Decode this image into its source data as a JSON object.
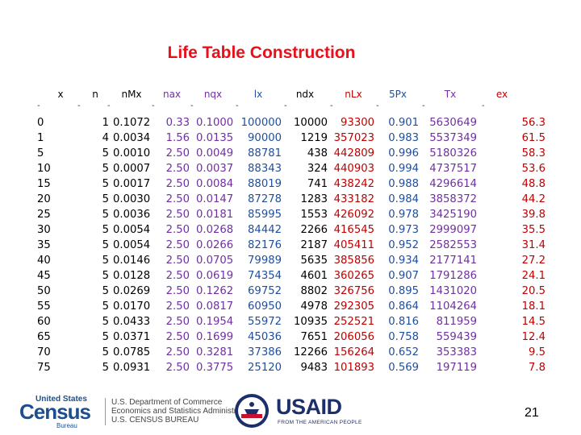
{
  "title": "Life Table Construction",
  "columns": [
    {
      "key": "x",
      "label": "x",
      "color": "#000000"
    },
    {
      "key": "n",
      "label": "n",
      "color": "#000000"
    },
    {
      "key": "nMx",
      "label": "nMx",
      "color": "#000000"
    },
    {
      "key": "nax",
      "label": "nax",
      "color": "#7030a0"
    },
    {
      "key": "nqx",
      "label": "nqx",
      "color": "#7030a0"
    },
    {
      "key": "lx",
      "label": "lx",
      "color": "#1f4e9b"
    },
    {
      "key": "ndx",
      "label": "ndx",
      "color": "#000000"
    },
    {
      "key": "nLx",
      "label": "nLx",
      "color": "#c00000"
    },
    {
      "key": "5Px",
      "label": "5Px",
      "color": "#1f4e9b"
    },
    {
      "key": "Tx",
      "label": "Tx",
      "color": "#7030a0"
    },
    {
      "key": "ex",
      "label": "ex",
      "color": "#c00000"
    }
  ],
  "separator": "-",
  "rows": [
    [
      "0",
      "1",
      "0.1072",
      "0.33",
      "0.1000",
      "100000",
      "10000",
      "93300",
      "0.901",
      "5630649",
      "56.3"
    ],
    [
      "1",
      "4",
      "0.0034",
      "1.56",
      "0.0135",
      "90000",
      "1219",
      "357023",
      "0.983",
      "5537349",
      "61.5"
    ],
    [
      "5",
      "5",
      "0.0010",
      "2.50",
      "0.0049",
      "88781",
      "438",
      "442809",
      "0.996",
      "5180326",
      "58.3"
    ],
    [
      "10",
      "5",
      "0.0007",
      "2.50",
      "0.0037",
      "88343",
      "324",
      "440903",
      "0.994",
      "4737517",
      "53.6"
    ],
    [
      "15",
      "5",
      "0.0017",
      "2.50",
      "0.0084",
      "88019",
      "741",
      "438242",
      "0.988",
      "4296614",
      "48.8"
    ],
    [
      "20",
      "5",
      "0.0030",
      "2.50",
      "0.0147",
      "87278",
      "1283",
      "433182",
      "0.984",
      "3858372",
      "44.2"
    ],
    [
      "25",
      "5",
      "0.0036",
      "2.50",
      "0.0181",
      "85995",
      "1553",
      "426092",
      "0.978",
      "3425190",
      "39.8"
    ],
    [
      "30",
      "5",
      "0.0054",
      "2.50",
      "0.0268",
      "84442",
      "2266",
      "416545",
      "0.973",
      "2999097",
      "35.5"
    ],
    [
      "35",
      "5",
      "0.0054",
      "2.50",
      "0.0266",
      "82176",
      "2187",
      "405411",
      "0.952",
      "2582553",
      "31.4"
    ],
    [
      "40",
      "5",
      "0.0146",
      "2.50",
      "0.0705",
      "79989",
      "5635",
      "385856",
      "0.934",
      "2177141",
      "27.2"
    ],
    [
      "45",
      "5",
      "0.0128",
      "2.50",
      "0.0619",
      "74354",
      "4601",
      "360265",
      "0.907",
      "1791286",
      "24.1"
    ],
    [
      "50",
      "5",
      "0.0269",
      "2.50",
      "0.1262",
      "69752",
      "8802",
      "326756",
      "0.895",
      "1431020",
      "20.5"
    ],
    [
      "55",
      "5",
      "0.0170",
      "2.50",
      "0.0817",
      "60950",
      "4978",
      "292305",
      "0.864",
      "1104264",
      "18.1"
    ],
    [
      "60",
      "5",
      "0.0433",
      "2.50",
      "0.1954",
      "55972",
      "10935",
      "252521",
      "0.816",
      "811959",
      "14.5"
    ],
    [
      "65",
      "5",
      "0.0371",
      "2.50",
      "0.1699",
      "45036",
      "7651",
      "206056",
      "0.758",
      "559439",
      "12.4"
    ],
    [
      "70",
      "5",
      "0.0785",
      "2.50",
      "0.3281",
      "37386",
      "12266",
      "156264",
      "0.652",
      "353383",
      "9.5"
    ],
    [
      "75",
      "5",
      "0.0931",
      "2.50",
      "0.3775",
      "25120",
      "9483",
      "101893",
      "0.569",
      "197119",
      "7.8"
    ]
  ],
  "footer": {
    "census_top": "United States",
    "census_word": "Census",
    "census_bottom": "Bureau",
    "doc_line1": "U.S. Department of Commerce",
    "doc_line2": "Economics and Statistics Administration",
    "doc_line3": "U.S. CENSUS BUREAU",
    "usaid": "USAID",
    "usaid_tagline": "FROM THE AMERICAN PEOPLE"
  },
  "page_number": "21"
}
